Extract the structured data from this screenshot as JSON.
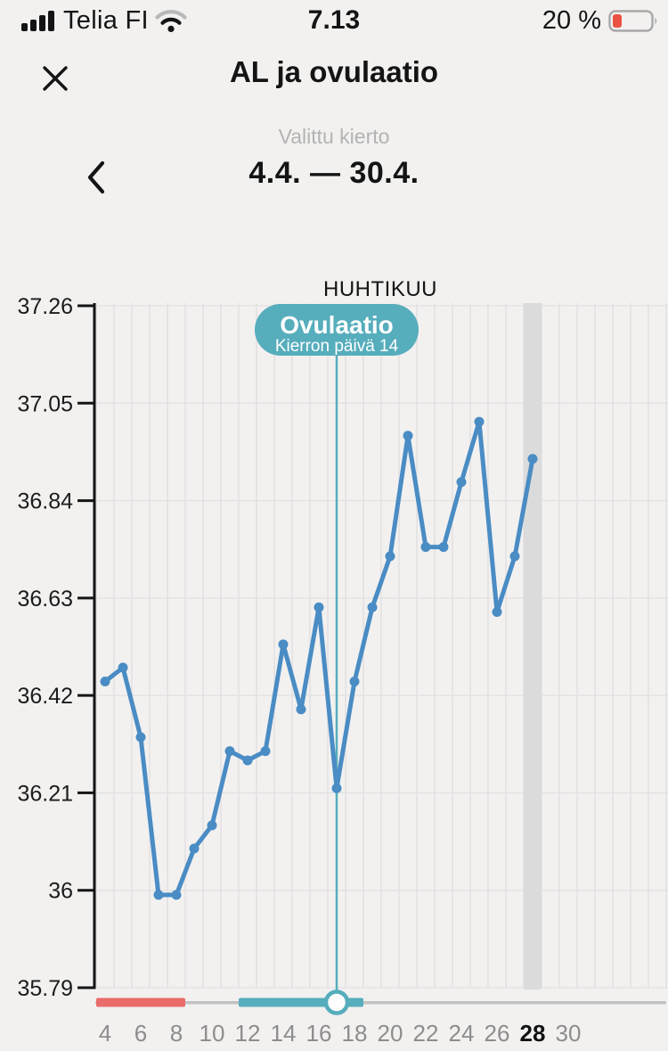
{
  "status_bar": {
    "carrier": "Telia FI",
    "time": "7.13",
    "battery": "20 %"
  },
  "header": {
    "title": "AL ja ovulaatio"
  },
  "cycle_selector": {
    "label": "Valittu kierto",
    "range": "4.4. — 30.4."
  },
  "chart_data": {
    "type": "line",
    "title": "HUHTIKUU",
    "xlabel": "",
    "ylabel": "",
    "x": [
      4,
      5,
      6,
      7,
      8,
      9,
      10,
      11,
      12,
      13,
      14,
      15,
      16,
      17,
      18,
      19,
      20,
      21,
      22,
      23,
      24,
      25,
      26,
      27,
      28
    ],
    "values": [
      36.45,
      36.48,
      36.33,
      35.99,
      35.99,
      36.09,
      36.14,
      36.3,
      36.28,
      36.3,
      36.53,
      36.39,
      36.61,
      36.22,
      36.45,
      36.61,
      36.72,
      36.98,
      36.74,
      36.74,
      36.88,
      37.01,
      36.6,
      36.72,
      36.93
    ],
    "x_ticks": [
      4,
      6,
      8,
      10,
      12,
      14,
      16,
      18,
      20,
      22,
      24,
      26,
      28,
      30
    ],
    "y_tick_labels": [
      "37.26",
      "37.05",
      "36.84",
      "36.63",
      "36.42",
      "36.21",
      "36",
      "35.79"
    ],
    "ylim": [
      35.79,
      37.26
    ],
    "grid": true,
    "legend": false,
    "today_day": 28,
    "ovulation": {
      "day": 17,
      "cycle_day": 14,
      "label": "Ovulaatio",
      "sublabel": "Kierron päivä 14"
    },
    "period_range": {
      "from": 3.5,
      "to": 8.5
    },
    "fertile_range": {
      "from": 11.5,
      "to": 18.5
    },
    "colors": {
      "line": "#4a8cc4",
      "accent_teal": "#56adbc",
      "period_red": "#ea6c6a",
      "today_column": "#dcdbdb",
      "grid_line": "#e4e3e3",
      "slider_track": "#c3c2c2",
      "axis": "#141414",
      "x_label": "#8e8d8d",
      "x_label_today": "#121212",
      "y_label": "#1c1c1c",
      "tooltip_text": "#ffffff"
    }
  }
}
